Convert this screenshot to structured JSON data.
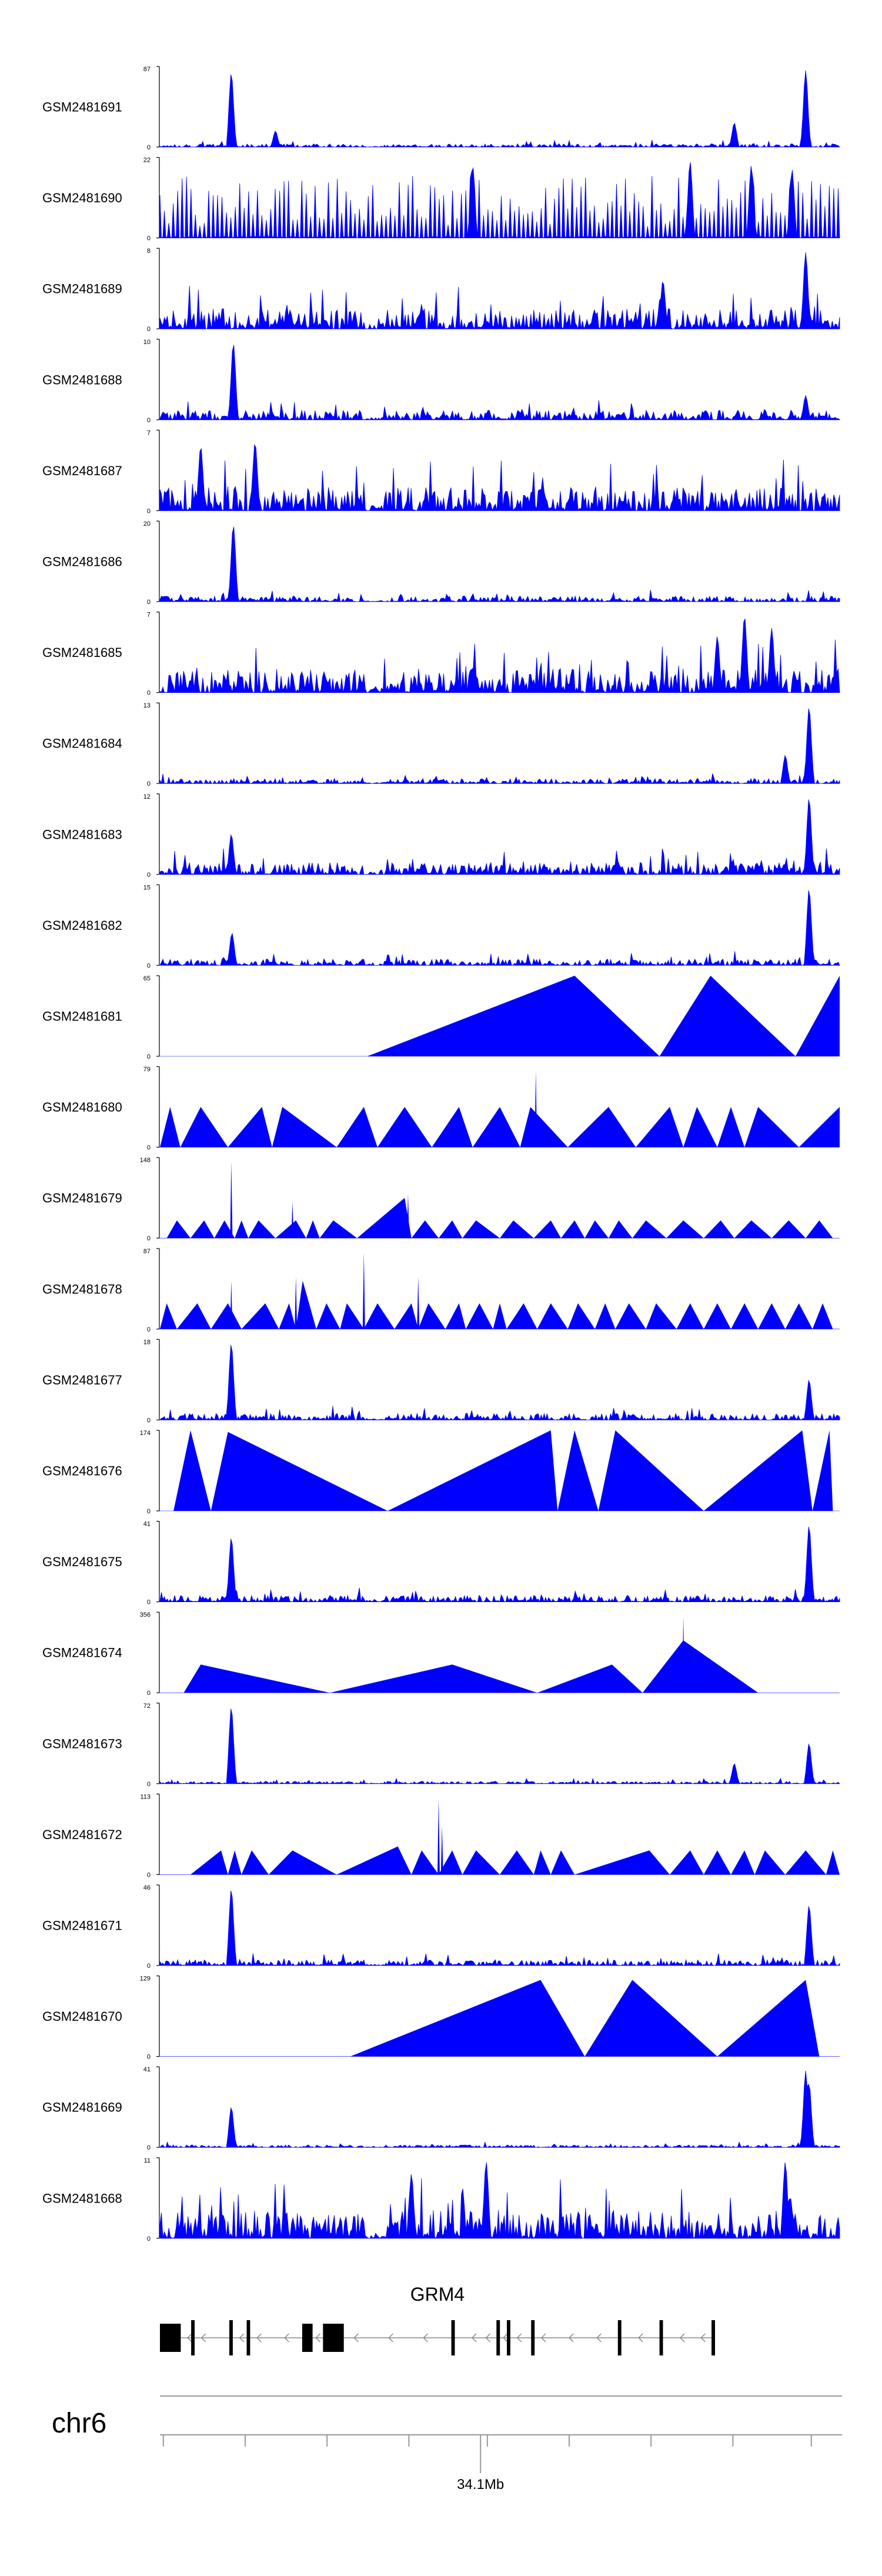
{
  "chart_data": {
    "type": "area",
    "color": "#0000ff",
    "tracks": [
      {
        "name": "GSM2481691",
        "max": "87",
        "min": "0",
        "pattern": "noise-peaks",
        "base": 0.04,
        "peaks": [
          [
            0.105,
            0.92
          ],
          [
            0.17,
            0.2
          ],
          [
            0.845,
            0.3
          ],
          [
            0.95,
            0.95
          ]
        ]
      },
      {
        "name": "GSM2481690",
        "max": "22",
        "min": "0",
        "pattern": "dense-spikes",
        "base": 0.35,
        "peaks": [
          [
            0.46,
            0.9
          ],
          [
            0.78,
            0.95
          ],
          [
            0.87,
            0.9
          ],
          [
            0.93,
            0.85
          ]
        ]
      },
      {
        "name": "GSM2481689",
        "max": "8",
        "min": "0",
        "pattern": "noise",
        "base": 0.25,
        "peaks": [
          [
            0.95,
            0.95
          ],
          [
            0.74,
            0.6
          ]
        ]
      },
      {
        "name": "GSM2481688",
        "max": "10",
        "min": "0",
        "pattern": "noise-peaks",
        "base": 0.12,
        "peaks": [
          [
            0.108,
            0.95
          ],
          [
            0.95,
            0.3
          ]
        ]
      },
      {
        "name": "GSM2481687",
        "max": "7",
        "min": "0",
        "pattern": "noise",
        "base": 0.3,
        "peaks": [
          [
            0.06,
            0.8
          ],
          [
            0.14,
            0.85
          ]
        ]
      },
      {
        "name": "GSM2481686",
        "max": "20",
        "min": "0",
        "pattern": "noise-peaks",
        "base": 0.07,
        "peaks": [
          [
            0.108,
            0.95
          ]
        ]
      },
      {
        "name": "GSM2481685",
        "max": "7",
        "min": "0",
        "pattern": "noise",
        "base": 0.3,
        "peaks": [
          [
            0.86,
            0.95
          ],
          [
            0.9,
            0.8
          ],
          [
            0.82,
            0.7
          ]
        ]
      },
      {
        "name": "GSM2481684",
        "max": "13",
        "min": "0",
        "pattern": "noise-peaks",
        "base": 0.06,
        "peaks": [
          [
            0.955,
            0.95
          ],
          [
            0.92,
            0.35
          ]
        ]
      },
      {
        "name": "GSM2481683",
        "max": "12",
        "min": "0",
        "pattern": "noise-peaks",
        "base": 0.15,
        "peaks": [
          [
            0.955,
            0.95
          ],
          [
            0.105,
            0.5
          ]
        ]
      },
      {
        "name": "GSM2481682",
        "max": "15",
        "min": "0",
        "pattern": "noise-peaks",
        "base": 0.08,
        "peaks": [
          [
            0.955,
            0.95
          ],
          [
            0.106,
            0.4
          ]
        ]
      },
      {
        "name": "GSM2481681",
        "max": "65",
        "min": "0",
        "pattern": "triangles",
        "tri": [
          [
            0.305,
            0.61,
            0.735,
            1.0
          ],
          [
            0.735,
            0.81,
            0.935,
            1.0
          ],
          [
            0.935,
            1.0,
            1.0,
            1.0
          ]
        ]
      },
      {
        "name": "GSM2481680",
        "max": "79",
        "min": "0",
        "pattern": "triangles",
        "tri": [
          [
            0.0,
            0.015,
            0.03,
            0.5
          ],
          [
            0.03,
            0.06,
            0.1,
            0.5
          ],
          [
            0.1,
            0.15,
            0.165,
            0.5
          ],
          [
            0.165,
            0.18,
            0.26,
            0.5
          ],
          [
            0.26,
            0.3,
            0.32,
            0.5
          ],
          [
            0.32,
            0.36,
            0.4,
            0.5
          ],
          [
            0.4,
            0.44,
            0.46,
            0.5
          ],
          [
            0.46,
            0.5,
            0.53,
            0.5
          ],
          [
            0.53,
            0.545,
            0.6,
            0.5
          ],
          [
            0.6,
            0.66,
            0.7,
            0.5
          ],
          [
            0.7,
            0.75,
            0.77,
            0.5
          ],
          [
            0.77,
            0.79,
            0.82,
            0.5
          ],
          [
            0.82,
            0.84,
            0.86,
            0.5
          ],
          [
            0.86,
            0.88,
            0.94,
            0.5
          ],
          [
            0.94,
            1.0,
            1.0,
            0.5
          ]
        ],
        "peaks": [
          [
            0.553,
            0.95
          ]
        ]
      },
      {
        "name": "GSM2481679",
        "max": "148",
        "min": "0",
        "pattern": "triangles",
        "tri": [
          [
            0.01,
            0.025,
            0.045,
            0.22
          ],
          [
            0.045,
            0.065,
            0.08,
            0.22
          ],
          [
            0.08,
            0.095,
            0.11,
            0.22
          ],
          [
            0.11,
            0.12,
            0.13,
            0.22
          ],
          [
            0.13,
            0.145,
            0.17,
            0.22
          ],
          [
            0.17,
            0.2,
            0.215,
            0.22
          ],
          [
            0.215,
            0.225,
            0.235,
            0.22
          ],
          [
            0.235,
            0.255,
            0.29,
            0.22
          ],
          [
            0.29,
            0.36,
            0.37,
            0.5
          ],
          [
            0.37,
            0.39,
            0.41,
            0.22
          ],
          [
            0.41,
            0.43,
            0.445,
            0.22
          ],
          [
            0.445,
            0.465,
            0.5,
            0.22
          ],
          [
            0.5,
            0.52,
            0.55,
            0.22
          ],
          [
            0.55,
            0.575,
            0.59,
            0.22
          ],
          [
            0.59,
            0.61,
            0.625,
            0.22
          ],
          [
            0.625,
            0.64,
            0.66,
            0.22
          ],
          [
            0.66,
            0.675,
            0.695,
            0.22
          ],
          [
            0.695,
            0.715,
            0.745,
            0.22
          ],
          [
            0.745,
            0.77,
            0.8,
            0.22
          ],
          [
            0.8,
            0.825,
            0.845,
            0.22
          ],
          [
            0.845,
            0.87,
            0.9,
            0.22
          ],
          [
            0.9,
            0.925,
            0.95,
            0.22
          ],
          [
            0.95,
            0.97,
            0.99,
            0.22
          ]
        ],
        "peaks": [
          [
            0.105,
            0.95
          ],
          [
            0.195,
            0.45
          ],
          [
            0.365,
            0.55
          ]
        ]
      },
      {
        "name": "GSM2481678",
        "max": "87",
        "min": "0",
        "pattern": "triangles",
        "tri": [
          [
            0.0,
            0.01,
            0.025,
            0.32
          ],
          [
            0.025,
            0.055,
            0.075,
            0.32
          ],
          [
            0.075,
            0.1,
            0.12,
            0.32
          ],
          [
            0.12,
            0.155,
            0.175,
            0.32
          ],
          [
            0.175,
            0.19,
            0.2,
            0.32
          ],
          [
            0.2,
            0.21,
            0.23,
            0.6
          ],
          [
            0.23,
            0.245,
            0.265,
            0.32
          ],
          [
            0.265,
            0.275,
            0.3,
            0.32
          ],
          [
            0.3,
            0.32,
            0.345,
            0.32
          ],
          [
            0.345,
            0.37,
            0.38,
            0.32
          ],
          [
            0.38,
            0.395,
            0.42,
            0.32
          ],
          [
            0.42,
            0.44,
            0.45,
            0.32
          ],
          [
            0.45,
            0.47,
            0.49,
            0.32
          ],
          [
            0.49,
            0.5,
            0.51,
            0.32
          ],
          [
            0.51,
            0.535,
            0.555,
            0.32
          ],
          [
            0.555,
            0.575,
            0.6,
            0.32
          ],
          [
            0.6,
            0.615,
            0.64,
            0.32
          ],
          [
            0.64,
            0.655,
            0.67,
            0.32
          ],
          [
            0.67,
            0.69,
            0.715,
            0.32
          ],
          [
            0.715,
            0.73,
            0.76,
            0.32
          ],
          [
            0.76,
            0.78,
            0.8,
            0.32
          ],
          [
            0.8,
            0.82,
            0.84,
            0.32
          ],
          [
            0.84,
            0.86,
            0.88,
            0.32
          ],
          [
            0.88,
            0.9,
            0.92,
            0.32
          ],
          [
            0.92,
            0.94,
            0.96,
            0.32
          ],
          [
            0.96,
            0.975,
            0.99,
            0.32
          ]
        ],
        "peaks": [
          [
            0.105,
            0.6
          ],
          [
            0.2,
            0.65
          ],
          [
            0.3,
            0.95
          ],
          [
            0.38,
            0.65
          ]
        ]
      },
      {
        "name": "GSM2481677",
        "max": "18",
        "min": "0",
        "pattern": "noise-peaks",
        "base": 0.08,
        "peaks": [
          [
            0.105,
            0.95
          ],
          [
            0.955,
            0.5
          ]
        ]
      },
      {
        "name": "GSM2481676",
        "max": "174",
        "min": "0",
        "pattern": "triangles",
        "tri": [
          [
            0.02,
            0.045,
            0.075,
            1.0
          ],
          [
            0.075,
            0.1,
            0.335,
            0.98
          ],
          [
            0.335,
            0.575,
            0.585,
            1.0
          ],
          [
            0.585,
            0.61,
            0.645,
            1.0
          ],
          [
            0.645,
            0.67,
            0.8,
            1.0
          ],
          [
            0.8,
            0.945,
            0.96,
            1.0
          ],
          [
            0.96,
            0.985,
            0.99,
            1.0
          ]
        ]
      },
      {
        "name": "GSM2481675",
        "max": "41",
        "min": "0",
        "pattern": "noise-peaks",
        "base": 0.08,
        "peaks": [
          [
            0.105,
            0.8
          ],
          [
            0.955,
            0.95
          ]
        ]
      },
      {
        "name": "GSM2481674",
        "max": "356",
        "min": "0",
        "pattern": "triangles",
        "tri": [
          [
            0.035,
            0.06,
            0.25,
            0.35
          ],
          [
            0.25,
            0.43,
            0.555,
            0.35
          ],
          [
            0.555,
            0.665,
            0.71,
            0.35
          ],
          [
            0.71,
            0.77,
            0.88,
            0.65
          ]
        ],
        "peaks": [
          [
            0.77,
            0.95
          ]
        ]
      },
      {
        "name": "GSM2481673",
        "max": "72",
        "min": "0",
        "pattern": "noise-peaks",
        "base": 0.03,
        "peaks": [
          [
            0.105,
            0.95
          ],
          [
            0.845,
            0.25
          ],
          [
            0.955,
            0.5
          ]
        ]
      },
      {
        "name": "GSM2481672",
        "max": "113",
        "min": "0",
        "pattern": "triangles",
        "tri": [
          [
            0.045,
            0.09,
            0.1,
            0.3
          ],
          [
            0.1,
            0.11,
            0.12,
            0.3
          ],
          [
            0.12,
            0.135,
            0.16,
            0.3
          ],
          [
            0.16,
            0.195,
            0.26,
            0.3
          ],
          [
            0.26,
            0.35,
            0.37,
            0.35
          ],
          [
            0.37,
            0.385,
            0.41,
            0.3
          ],
          [
            0.41,
            0.43,
            0.445,
            0.3
          ],
          [
            0.445,
            0.465,
            0.5,
            0.3
          ],
          [
            0.5,
            0.525,
            0.55,
            0.3
          ],
          [
            0.55,
            0.56,
            0.575,
            0.3
          ],
          [
            0.575,
            0.59,
            0.61,
            0.3
          ],
          [
            0.61,
            0.72,
            0.75,
            0.3
          ],
          [
            0.75,
            0.78,
            0.8,
            0.3
          ],
          [
            0.8,
            0.82,
            0.84,
            0.3
          ],
          [
            0.84,
            0.86,
            0.875,
            0.3
          ],
          [
            0.875,
            0.89,
            0.92,
            0.3
          ],
          [
            0.92,
            0.95,
            0.98,
            0.3
          ],
          [
            0.98,
            0.99,
            1.0,
            0.3
          ]
        ],
        "peaks": [
          [
            0.41,
            0.95
          ],
          [
            0.415,
            0.6
          ]
        ]
      },
      {
        "name": "GSM2481671",
        "max": "46",
        "min": "0",
        "pattern": "noise-peaks",
        "base": 0.07,
        "peaks": [
          [
            0.105,
            0.95
          ],
          [
            0.955,
            0.75
          ]
        ]
      },
      {
        "name": "GSM2481670",
        "max": "129",
        "min": "0",
        "pattern": "triangles",
        "tri": [
          [
            0.28,
            0.56,
            0.625,
            0.95
          ],
          [
            0.625,
            0.695,
            0.82,
            0.95
          ],
          [
            0.82,
            0.95,
            0.97,
            0.95
          ]
        ]
      },
      {
        "name": "GSM2481669",
        "max": "41",
        "min": "0",
        "pattern": "noise-peaks",
        "base": 0.03,
        "peaks": [
          [
            0.105,
            0.5
          ],
          [
            0.95,
            0.95
          ],
          [
            0.955,
            0.8
          ]
        ]
      },
      {
        "name": "GSM2481668",
        "max": "11",
        "min": "0",
        "pattern": "noise",
        "base": 0.35,
        "peaks": [
          [
            0.48,
            0.95
          ],
          [
            0.92,
            0.95
          ],
          [
            0.37,
            0.8
          ]
        ]
      }
    ],
    "gene": {
      "name": "GRM4",
      "exons": [
        [
          0.0,
          0.03
        ],
        [
          0.045,
          0.05
        ],
        [
          0.1,
          0.105
        ],
        [
          0.125,
          0.13
        ],
        [
          0.205,
          0.22
        ],
        [
          0.235,
          0.265
        ],
        [
          0.42,
          0.425
        ],
        [
          0.485,
          0.49
        ],
        [
          0.5,
          0.505
        ],
        [
          0.535,
          0.54
        ],
        [
          0.66,
          0.665
        ],
        [
          0.72,
          0.725
        ],
        [
          0.795,
          0.8
        ]
      ],
      "introns": [
        0.04,
        0.06,
        0.115,
        0.14,
        0.18,
        0.225,
        0.28,
        0.33,
        0.38,
        0.45,
        0.47,
        0.495,
        0.515,
        0.55,
        0.59,
        0.63,
        0.69,
        0.75,
        0.78
      ],
      "start": 0.0,
      "end": 0.8
    },
    "chromosome": "chr6",
    "axis": {
      "ticks": [
        0.005,
        0.125,
        0.245,
        0.365,
        0.48,
        0.6,
        0.72,
        0.84,
        0.955
      ],
      "labeled_tick": 0.47,
      "label": "34.1Mb"
    }
  }
}
